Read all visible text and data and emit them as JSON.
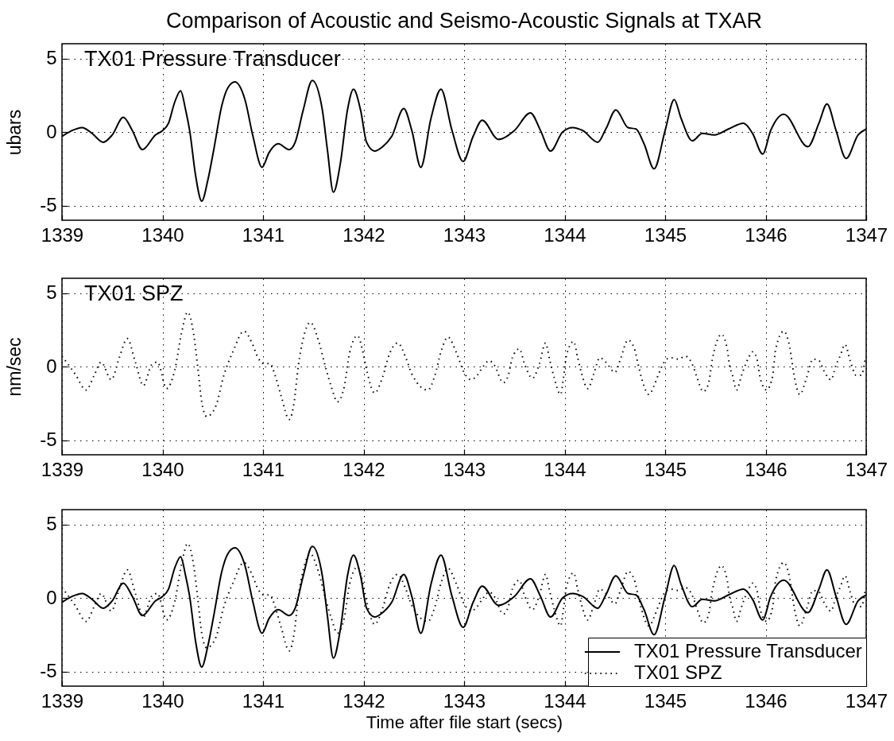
{
  "chart_data": [
    {
      "type": "line",
      "title": "Comparison of Acoustic and Seismo-Acoustic Signals at TXAR",
      "ylabel": "ubars",
      "xlim": [
        1339,
        1347
      ],
      "xticks": [
        1339,
        1340,
        1341,
        1342,
        1343,
        1344,
        1345,
        1346,
        1347
      ],
      "ylim": [
        -6,
        6
      ],
      "yticks": [
        -5,
        0,
        5
      ],
      "grid": true,
      "series": [
        {
          "name": "TX01 Pressure Transducer",
          "color": "#000000",
          "line_style": "solid",
          "x": [
            1339.0,
            1339.1,
            1339.2,
            1339.3,
            1339.41,
            1339.5,
            1339.61,
            1339.7,
            1339.8,
            1339.93,
            1340.0,
            1340.06,
            1340.12,
            1340.18,
            1340.23,
            1340.27,
            1340.33,
            1340.39,
            1340.45,
            1340.51,
            1340.59,
            1340.65,
            1340.72,
            1340.82,
            1340.9,
            1340.99,
            1341.06,
            1341.15,
            1341.26,
            1341.32,
            1341.4,
            1341.49,
            1341.59,
            1341.64,
            1341.7,
            1341.77,
            1341.84,
            1341.9,
            1341.97,
            1342.03,
            1342.11,
            1342.19,
            1342.28,
            1342.4,
            1342.48,
            1342.57,
            1342.67,
            1342.77,
            1342.88,
            1342.99,
            1343.09,
            1343.18,
            1343.34,
            1343.5,
            1343.66,
            1343.76,
            1343.86,
            1343.98,
            1344.08,
            1344.18,
            1344.33,
            1344.41,
            1344.51,
            1344.63,
            1344.71,
            1344.79,
            1344.89,
            1345.0,
            1345.09,
            1345.16,
            1345.27,
            1345.37,
            1345.49,
            1345.63,
            1345.78,
            1345.87,
            1345.97,
            1346.05,
            1346.18,
            1346.42,
            1346.53,
            1346.61,
            1346.7,
            1346.8,
            1346.92,
            1347.0
          ],
          "values": [
            -0.3,
            0.1,
            0.3,
            -0.1,
            -0.7,
            -0.2,
            1.0,
            0.1,
            -1.2,
            -0.2,
            0.1,
            0.6,
            2.0,
            2.8,
            1.5,
            0.1,
            -3.0,
            -4.7,
            -3.3,
            -1.2,
            1.8,
            3.0,
            3.4,
            2.2,
            -0.3,
            -2.4,
            -1.4,
            -0.8,
            -1.2,
            -0.7,
            1.5,
            3.5,
            1.5,
            -1.2,
            -4.1,
            -2.1,
            1.5,
            2.9,
            1.5,
            -0.7,
            -1.3,
            -1.0,
            -0.3,
            1.6,
            0.1,
            -2.4,
            0.9,
            2.9,
            0.1,
            -2.0,
            -0.3,
            0.8,
            -0.5,
            0.1,
            1.3,
            0.1,
            -1.3,
            0.0,
            0.3,
            0.1,
            -0.7,
            0.2,
            1.5,
            0.3,
            0.2,
            -0.8,
            -2.5,
            0.1,
            2.2,
            0.9,
            -0.6,
            -0.1,
            -0.2,
            0.2,
            0.6,
            -0.1,
            -1.5,
            0.1,
            1.2,
            -1.0,
            0.6,
            1.9,
            0.1,
            -1.8,
            -0.2,
            0.2
          ]
        }
      ]
    },
    {
      "type": "line",
      "ylabel": "nm/sec",
      "xlim": [
        1339,
        1347
      ],
      "xticks": [
        1339,
        1340,
        1341,
        1342,
        1343,
        1344,
        1345,
        1346,
        1347
      ],
      "ylim": [
        -6,
        6
      ],
      "yticks": [
        -5,
        0,
        5
      ],
      "grid": true,
      "series": [
        {
          "name": "TX01 SPZ",
          "color": "#000000",
          "line_style": "dotted",
          "x": [
            1339.0,
            1339.13,
            1339.24,
            1339.32,
            1339.39,
            1339.49,
            1339.57,
            1339.65,
            1339.73,
            1339.81,
            1339.89,
            1339.95,
            1340.04,
            1340.12,
            1340.19,
            1340.25,
            1340.31,
            1340.35,
            1340.39,
            1340.44,
            1340.53,
            1340.61,
            1340.7,
            1340.81,
            1340.89,
            1340.95,
            1341.01,
            1341.07,
            1341.12,
            1341.18,
            1341.26,
            1341.31,
            1341.35,
            1341.4,
            1341.47,
            1341.55,
            1341.62,
            1341.68,
            1341.74,
            1341.81,
            1341.86,
            1341.94,
            1341.99,
            1342.03,
            1342.11,
            1342.19,
            1342.26,
            1342.34,
            1342.42,
            1342.48,
            1342.64,
            1342.71,
            1342.77,
            1342.84,
            1342.92,
            1343.0,
            1343.07,
            1343.13,
            1343.19,
            1343.25,
            1343.3,
            1343.39,
            1343.44,
            1343.48,
            1343.55,
            1343.6,
            1343.68,
            1343.75,
            1343.81,
            1343.85,
            1343.89,
            1343.96,
            1343.99,
            1344.02,
            1344.09,
            1344.13,
            1344.17,
            1344.23,
            1344.29,
            1344.35,
            1344.41,
            1344.5,
            1344.56,
            1344.63,
            1344.69,
            1344.73,
            1344.77,
            1344.84,
            1344.89,
            1344.93,
            1344.99,
            1345.05,
            1345.13,
            1345.2,
            1345.28,
            1345.31,
            1345.38,
            1345.43,
            1345.47,
            1345.51,
            1345.56,
            1345.62,
            1345.64,
            1345.67,
            1345.71,
            1345.76,
            1345.83,
            1345.87,
            1345.91,
            1345.95,
            1346.01,
            1346.07,
            1346.1,
            1346.18,
            1346.24,
            1346.28,
            1346.34,
            1346.41,
            1346.47,
            1346.53,
            1346.58,
            1346.65,
            1346.7,
            1346.74,
            1346.79,
            1346.84,
            1346.9,
            1346.95,
            1346.99
          ],
          "values": [
            0.7,
            -0.5,
            -1.6,
            -0.6,
            0.3,
            -0.9,
            0.6,
            1.9,
            0.3,
            -1.3,
            0.1,
            0.3,
            -1.5,
            -0.3,
            2.3,
            3.7,
            2.2,
            0.0,
            -2.4,
            -3.4,
            -2.7,
            -0.6,
            1.0,
            2.4,
            1.6,
            0.6,
            0.2,
            0.2,
            -0.6,
            -2.0,
            -3.6,
            -2.4,
            0.0,
            1.9,
            3.0,
            1.8,
            0.0,
            -1.4,
            -2.4,
            -1.3,
            0.9,
            2.1,
            1.1,
            -0.2,
            -1.8,
            -0.7,
            0.9,
            1.6,
            0.6,
            -0.5,
            -1.6,
            -0.6,
            1.0,
            2.0,
            1.0,
            -0.4,
            -0.9,
            -0.6,
            0.0,
            0.4,
            0.1,
            -1.1,
            -0.6,
            0.6,
            1.2,
            0.2,
            -0.8,
            0.2,
            1.6,
            0.5,
            -0.6,
            -1.9,
            -0.7,
            0.8,
            1.7,
            0.6,
            -0.5,
            -1.5,
            -0.5,
            0.6,
            0.3,
            -0.4,
            0.6,
            1.8,
            1.3,
            0.2,
            -0.9,
            -1.9,
            -1.3,
            -0.6,
            0.3,
            0.6,
            0.5,
            0.7,
            0.0,
            -0.6,
            -1.7,
            -1.2,
            0.5,
            1.6,
            2.2,
            1.1,
            0.1,
            -0.6,
            -1.6,
            -0.6,
            0.6,
            1.0,
            0.6,
            -0.9,
            -1.6,
            -0.6,
            1.2,
            2.4,
            1.3,
            -0.5,
            -1.9,
            -0.7,
            0.5,
            0.4,
            -0.3,
            -0.9,
            0.1,
            0.7,
            1.5,
            0.4,
            -0.6,
            -0.6,
            0.5
          ]
        }
      ]
    },
    {
      "type": "line",
      "xlabel": "Time after file start (secs)",
      "xlim": [
        1339,
        1347
      ],
      "xticks": [
        1339,
        1340,
        1341,
        1342,
        1343,
        1344,
        1345,
        1346,
        1347
      ],
      "ylim": [
        -6,
        6
      ],
      "yticks": [
        -5,
        0,
        5
      ],
      "grid": true,
      "legend": "bottom right",
      "series": [
        {
          "name": "TX01 Pressure Transducer",
          "color": "#000000",
          "line_style": "solid",
          "x": [
            1339.0,
            1339.1,
            1339.2,
            1339.3,
            1339.41,
            1339.5,
            1339.61,
            1339.7,
            1339.8,
            1339.93,
            1340.0,
            1340.06,
            1340.12,
            1340.18,
            1340.23,
            1340.27,
            1340.33,
            1340.39,
            1340.45,
            1340.51,
            1340.59,
            1340.65,
            1340.72,
            1340.82,
            1340.9,
            1340.99,
            1341.06,
            1341.15,
            1341.26,
            1341.32,
            1341.4,
            1341.49,
            1341.59,
            1341.64,
            1341.7,
            1341.77,
            1341.84,
            1341.9,
            1341.97,
            1342.03,
            1342.11,
            1342.19,
            1342.28,
            1342.4,
            1342.48,
            1342.57,
            1342.67,
            1342.77,
            1342.88,
            1342.99,
            1343.09,
            1343.18,
            1343.34,
            1343.5,
            1343.66,
            1343.76,
            1343.86,
            1343.98,
            1344.08,
            1344.18,
            1344.33,
            1344.41,
            1344.51,
            1344.63,
            1344.71,
            1344.79,
            1344.89,
            1345.0,
            1345.09,
            1345.16,
            1345.27,
            1345.37,
            1345.49,
            1345.63,
            1345.78,
            1345.87,
            1345.97,
            1346.05,
            1346.18,
            1346.42,
            1346.53,
            1346.61,
            1346.7,
            1346.8,
            1346.92,
            1347.0
          ],
          "values": [
            -0.3,
            0.1,
            0.3,
            -0.1,
            -0.7,
            -0.2,
            1.0,
            0.1,
            -1.2,
            -0.2,
            0.1,
            0.6,
            2.0,
            2.8,
            1.5,
            0.1,
            -3.0,
            -4.7,
            -3.3,
            -1.2,
            1.8,
            3.0,
            3.4,
            2.2,
            -0.3,
            -2.4,
            -1.4,
            -0.8,
            -1.2,
            -0.7,
            1.5,
            3.5,
            1.5,
            -1.2,
            -4.1,
            -2.1,
            1.5,
            2.9,
            1.5,
            -0.7,
            -1.3,
            -1.0,
            -0.3,
            1.6,
            0.1,
            -2.4,
            0.9,
            2.9,
            0.1,
            -2.0,
            -0.3,
            0.8,
            -0.5,
            0.1,
            1.3,
            0.1,
            -1.3,
            0.0,
            0.3,
            0.1,
            -0.7,
            0.2,
            1.5,
            0.3,
            0.2,
            -0.8,
            -2.5,
            0.1,
            2.2,
            0.9,
            -0.6,
            -0.1,
            -0.2,
            0.2,
            0.6,
            -0.1,
            -1.5,
            0.1,
            1.2,
            -1.0,
            0.6,
            1.9,
            0.1,
            -1.8,
            -0.2,
            0.2
          ]
        },
        {
          "name": "TX01 SPZ",
          "color": "#000000",
          "line_style": "dotted",
          "x": [
            1339.0,
            1339.13,
            1339.24,
            1339.32,
            1339.39,
            1339.49,
            1339.57,
            1339.65,
            1339.73,
            1339.81,
            1339.89,
            1339.95,
            1340.04,
            1340.12,
            1340.19,
            1340.25,
            1340.31,
            1340.35,
            1340.39,
            1340.44,
            1340.53,
            1340.61,
            1340.7,
            1340.81,
            1340.89,
            1340.95,
            1341.01,
            1341.07,
            1341.12,
            1341.18,
            1341.26,
            1341.31,
            1341.35,
            1341.4,
            1341.47,
            1341.55,
            1341.62,
            1341.68,
            1341.74,
            1341.81,
            1341.86,
            1341.94,
            1341.99,
            1342.03,
            1342.11,
            1342.19,
            1342.26,
            1342.34,
            1342.42,
            1342.48,
            1342.64,
            1342.71,
            1342.77,
            1342.84,
            1342.92,
            1343.0,
            1343.07,
            1343.13,
            1343.19,
            1343.25,
            1343.3,
            1343.39,
            1343.44,
            1343.48,
            1343.55,
            1343.6,
            1343.68,
            1343.75,
            1343.81,
            1343.85,
            1343.89,
            1343.96,
            1343.99,
            1344.02,
            1344.09,
            1344.13,
            1344.17,
            1344.23,
            1344.29,
            1344.35,
            1344.41,
            1344.5,
            1344.56,
            1344.63,
            1344.69,
            1344.73,
            1344.77,
            1344.84,
            1344.89,
            1344.93,
            1344.99,
            1345.05,
            1345.13,
            1345.2,
            1345.28,
            1345.31,
            1345.38,
            1345.43,
            1345.47,
            1345.51,
            1345.56,
            1345.62,
            1345.64,
            1345.67,
            1345.71,
            1345.76,
            1345.83,
            1345.87,
            1345.91,
            1345.95,
            1346.01,
            1346.07,
            1346.1,
            1346.18,
            1346.24,
            1346.28,
            1346.34,
            1346.41,
            1346.47,
            1346.53,
            1346.58,
            1346.65,
            1346.7,
            1346.74,
            1346.79,
            1346.84,
            1346.9,
            1346.95,
            1346.99
          ],
          "values": [
            0.7,
            -0.5,
            -1.6,
            -0.6,
            0.3,
            -0.9,
            0.6,
            1.9,
            0.3,
            -1.3,
            0.1,
            0.3,
            -1.5,
            -0.3,
            2.3,
            3.7,
            2.2,
            0.0,
            -2.4,
            -3.4,
            -2.7,
            -0.6,
            1.0,
            2.4,
            1.6,
            0.6,
            0.2,
            0.2,
            -0.6,
            -2.0,
            -3.6,
            -2.4,
            0.0,
            1.9,
            3.0,
            1.8,
            0.0,
            -1.4,
            -2.4,
            -1.3,
            0.9,
            2.1,
            1.1,
            -0.2,
            -1.8,
            -0.7,
            0.9,
            1.6,
            0.6,
            -0.5,
            -1.6,
            -0.6,
            1.0,
            2.0,
            1.0,
            -0.4,
            -0.9,
            -0.6,
            0.0,
            0.4,
            0.1,
            -1.1,
            -0.6,
            0.6,
            1.2,
            0.2,
            -0.8,
            0.2,
            1.6,
            0.5,
            -0.6,
            -1.9,
            -0.7,
            0.8,
            1.7,
            0.6,
            -0.5,
            -1.5,
            -0.5,
            0.6,
            0.3,
            -0.4,
            0.6,
            1.8,
            1.3,
            0.2,
            -0.9,
            -1.9,
            -1.3,
            -0.6,
            0.3,
            0.6,
            0.5,
            0.7,
            0.0,
            -0.6,
            -1.7,
            -1.2,
            0.5,
            1.6,
            2.2,
            1.1,
            0.1,
            -0.6,
            -1.6,
            -0.6,
            0.6,
            1.0,
            0.6,
            -0.9,
            -1.6,
            -0.6,
            1.2,
            2.4,
            1.3,
            -0.5,
            -1.9,
            -0.7,
            0.5,
            0.4,
            -0.3,
            -0.9,
            0.1,
            0.7,
            1.5,
            0.4,
            -0.6,
            -0.6,
            0.5
          ]
        }
      ]
    }
  ]
}
